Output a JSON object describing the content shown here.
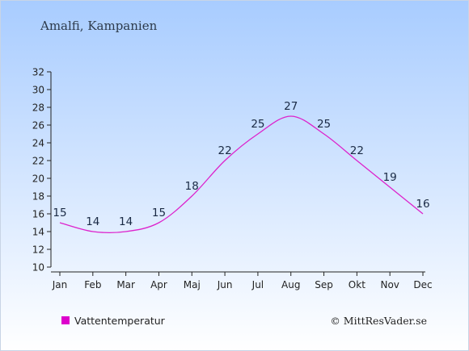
{
  "chart_data": {
    "type": "line",
    "title": "Amalfi, Kampanien",
    "categories": [
      "Jan",
      "Feb",
      "Mar",
      "Apr",
      "Maj",
      "Jun",
      "Jul",
      "Aug",
      "Sep",
      "Okt",
      "Nov",
      "Dec"
    ],
    "series": [
      {
        "name": "Vattentemperatur",
        "values": [
          15,
          14,
          14,
          15,
          18,
          22,
          25,
          27,
          25,
          22,
          19,
          16
        ],
        "color": "#dd22cc"
      }
    ],
    "ylim": [
      10,
      32
    ],
    "yticks": [
      "10",
      "12",
      "14",
      "16",
      "18",
      "20",
      "22",
      "24",
      "26",
      "28",
      "30",
      "32"
    ],
    "xlabel": "",
    "ylabel": "",
    "legend_position": "bottom-left",
    "grid": false
  },
  "credit": "© MittResVader.se",
  "colors": {
    "background_top": "#a8ccff",
    "background_bottom": "#ffffff",
    "line": "#dd22cc",
    "legend_swatch": "#dd00cc"
  }
}
